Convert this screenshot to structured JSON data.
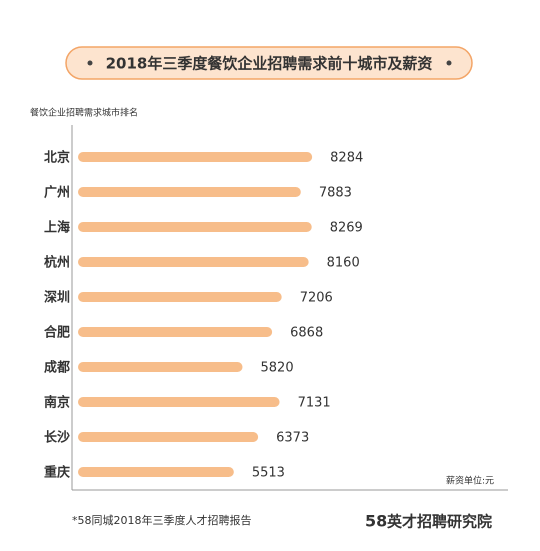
{
  "chart_data": {
    "type": "bar",
    "orientation": "horizontal",
    "title": "2018年三季度餐饮企业招聘需求前十城市及薪资",
    "y_label": "餐饮企业招聘需求城市排名",
    "x_label": "薪资单位:元",
    "categories": [
      "北京",
      "广州",
      "上海",
      "杭州",
      "深圳",
      "合肥",
      "成都",
      "南京",
      "长沙",
      "重庆"
    ],
    "values": [
      8284,
      7883,
      8269,
      8160,
      7206,
      6868,
      5820,
      7131,
      6373,
      5513
    ],
    "color": "#f7bd8a",
    "xlim": [
      0,
      15000
    ],
    "footnote": "*58同城2018年三季度人才招聘报告",
    "logo_mark": "58",
    "logo_text": "英才招聘研究院"
  }
}
